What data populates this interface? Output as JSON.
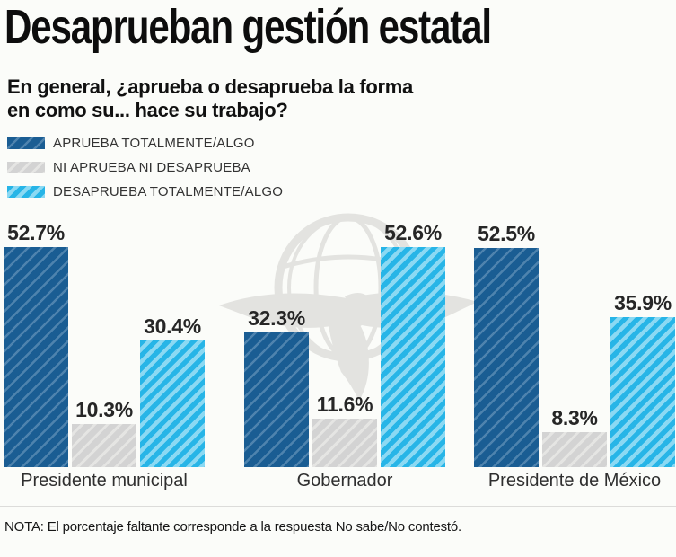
{
  "header": {
    "title": "Desaprueban gestión estatal",
    "subtitle_line1": "En general, ¿aprueba o desaprueba la forma",
    "subtitle_line2": "en como su... hace su trabajo?"
  },
  "note": "NOTA: El porcentaje faltante corresponde a la respuesta No sabe/No contestó.",
  "watermark_icon": "globe-eagle-watermark",
  "chart_data": {
    "type": "bar",
    "title": "Desaprueban gestión estatal",
    "question": "En general, ¿aprueba o desaprueba la forma en como su... hace su trabajo?",
    "categories": [
      "Presidente municipal",
      "Gobernador",
      "Presidente de México"
    ],
    "series": [
      {
        "name": "APRUEBA TOTALMENTE/ALGO",
        "color": "#1a5d93",
        "stripe_color": "#4e83ae",
        "values": [
          52.7,
          32.3,
          52.5
        ],
        "value_labels": [
          "52.7%",
          "32.3%",
          "52.5%"
        ]
      },
      {
        "name": "NI APRUEBA NI DESAPRUEBA",
        "color": "#d3d3d3",
        "stripe_color": "#e5e5e3",
        "values": [
          10.3,
          11.6,
          8.3
        ],
        "value_labels": [
          "10.3%",
          "11.6%",
          "8.3%"
        ]
      },
      {
        "name": "DESAPRUEBA TOTALMENTE/ALGO",
        "color": "#27b5e7",
        "stripe_color": "#8bd9f3",
        "values": [
          30.4,
          52.6,
          35.9
        ],
        "value_labels": [
          "30.4%",
          "52.6%",
          "35.9%"
        ]
      }
    ],
    "ylim": [
      0,
      55
    ],
    "grid": false,
    "axes_shown": false,
    "hatch": "diagonal",
    "legend_position": "top-left"
  }
}
